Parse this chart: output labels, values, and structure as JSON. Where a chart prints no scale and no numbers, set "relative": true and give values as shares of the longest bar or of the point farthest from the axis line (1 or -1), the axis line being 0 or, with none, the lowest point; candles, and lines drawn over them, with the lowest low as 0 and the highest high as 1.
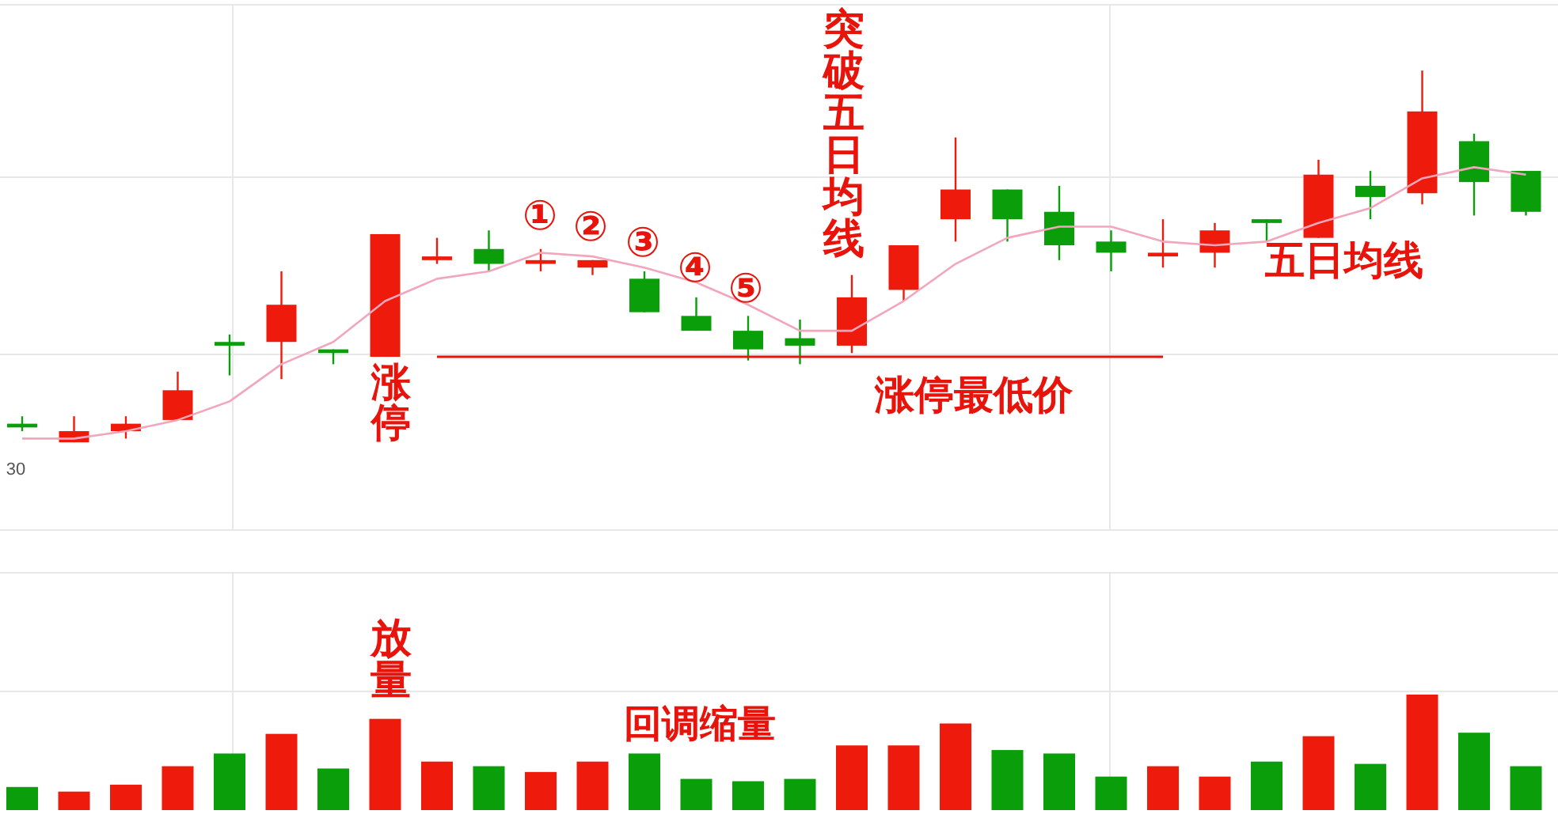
{
  "chart_data": [
    {
      "type": "candlestick",
      "relative": true,
      "categories": [
        null,
        null,
        null,
        null,
        null,
        null,
        null,
        null,
        null,
        null,
        null,
        null,
        null,
        null,
        null,
        null,
        null,
        null,
        null,
        null,
        null,
        null,
        null,
        null,
        null,
        null,
        null,
        null,
        null,
        null
      ],
      "ohlc": [
        [
          0.05,
          0.07,
          0.03,
          0.04
        ],
        [
          0,
          0.07,
          0,
          0.03
        ],
        [
          0.03,
          0.07,
          0.01,
          0.05
        ],
        [
          0.06,
          0.19,
          0.06,
          0.14
        ],
        [
          0.27,
          0.29,
          0.18,
          0.26
        ],
        [
          0.27,
          0.46,
          0.17,
          0.37
        ],
        [
          0.25,
          0.25,
          0.21,
          0.24
        ],
        [
          0.23,
          0.56,
          0.23,
          0.56
        ],
        [
          0.49,
          0.55,
          0.48,
          0.5
        ],
        [
          0.52,
          0.57,
          0.46,
          0.48
        ],
        [
          0.48,
          0.52,
          0.46,
          0.49
        ],
        [
          0.47,
          0.49,
          0.45,
          0.49
        ],
        [
          0.44,
          0.46,
          0.35,
          0.35
        ],
        [
          0.34,
          0.39,
          0.3,
          0.3
        ],
        [
          0.3,
          0.34,
          0.22,
          0.25
        ],
        [
          0.28,
          0.33,
          0.21,
          0.26
        ],
        [
          0.26,
          0.45,
          0.24,
          0.39
        ],
        [
          0.41,
          0.53,
          0.38,
          0.53
        ],
        [
          0.6,
          0.82,
          0.54,
          0.68
        ],
        [
          0.68,
          0.68,
          0.54,
          0.6
        ],
        [
          0.62,
          0.69,
          0.49,
          0.53
        ],
        [
          0.54,
          0.57,
          0.46,
          0.51
        ],
        [
          0.5,
          0.6,
          0.47,
          0.51
        ],
        [
          0.51,
          0.59,
          0.47,
          0.57
        ],
        [
          0.6,
          0.6,
          0.54,
          0.59
        ],
        [
          0.55,
          0.76,
          0.55,
          0.72
        ],
        [
          0.69,
          0.73,
          0.6,
          0.66
        ],
        [
          0.67,
          1,
          0.64,
          0.89
        ],
        [
          0.81,
          0.83,
          0.61,
          0.7
        ],
        [
          0.73,
          0.73,
          0.61,
          0.62
        ]
      ],
      "colors": [
        "#0a9e0a",
        "#ee1a0c",
        "#ee1a0c",
        "#ee1a0c",
        "#0a9e0a",
        "#ee1a0c",
        "#0a9e0a",
        "#ee1a0c",
        "#ee1a0c",
        "#0a9e0a",
        "#ee1a0c",
        "#ee1a0c",
        "#0a9e0a",
        "#0a9e0a",
        "#0a9e0a",
        "#0a9e0a",
        "#ee1a0c",
        "#ee1a0c",
        "#ee1a0c",
        "#0a9e0a",
        "#0a9e0a",
        "#0a9e0a",
        "#ee1a0c",
        "#ee1a0c",
        "#0a9e0a",
        "#ee1a0c",
        "#0a9e0a",
        "#ee1a0c",
        "#0a9e0a",
        "#0a9e0a"
      ],
      "series": [
        {
          "type": "line",
          "name": "五日均线",
          "color": "#f2a6bb",
          "values": [
            0.01,
            0.01,
            0.03,
            0.06,
            0.11,
            0.21,
            0.27,
            0.38,
            0.44,
            0.46,
            0.51,
            0.5,
            0.47,
            0.43,
            0.37,
            0.3,
            0.3,
            0.38,
            0.48,
            0.55,
            0.58,
            0.58,
            0.54,
            0.53,
            0.54,
            0.59,
            0.63,
            0.71,
            0.74,
            0.72
          ]
        },
        {
          "type": "line",
          "name": "涨停最低价",
          "color": "#e8140c",
          "values": [
            null,
            null,
            null,
            null,
            null,
            null,
            null,
            null,
            0.23,
            0.23,
            0.23,
            0.23,
            0.23,
            0.23,
            0.23,
            0.23,
            0.23,
            0.23,
            0.23,
            0.23,
            0.23,
            0.23,
            0.23,
            null,
            null,
            null,
            null,
            null,
            null,
            null
          ]
        }
      ],
      "annotations": [
        "涨停",
        "突破五日均线",
        "①",
        "②",
        "③",
        "④",
        "⑤",
        "30"
      ]
    },
    {
      "type": "bar",
      "relative": true,
      "categories": [
        null,
        null,
        null,
        null,
        null,
        null,
        null,
        null,
        null,
        null,
        null,
        null,
        null,
        null,
        null,
        null,
        null,
        null,
        null,
        null,
        null,
        null,
        null,
        null,
        null,
        null,
        null,
        null,
        null,
        null
      ],
      "values": [
        0.2,
        0.16,
        0.22,
        0.38,
        0.49,
        0.66,
        0.36,
        0.79,
        0.42,
        0.38,
        0.33,
        0.42,
        0.49,
        0.27,
        0.25,
        0.27,
        0.56,
        0.56,
        0.75,
        0.52,
        0.49,
        0.29,
        0.38,
        0.29,
        0.42,
        0.64,
        0.4,
        1,
        0.67,
        0.38
      ],
      "colors": [
        "#0a9e0a",
        "#ee1a0c",
        "#ee1a0c",
        "#ee1a0c",
        "#0a9e0a",
        "#ee1a0c",
        "#0a9e0a",
        "#ee1a0c",
        "#ee1a0c",
        "#0a9e0a",
        "#ee1a0c",
        "#ee1a0c",
        "#0a9e0a",
        "#0a9e0a",
        "#0a9e0a",
        "#0a9e0a",
        "#ee1a0c",
        "#ee1a0c",
        "#ee1a0c",
        "#0a9e0a",
        "#0a9e0a",
        "#0a9e0a",
        "#ee1a0c",
        "#ee1a0c",
        "#0a9e0a",
        "#ee1a0c",
        "#0a9e0a",
        "#ee1a0c",
        "#0a9e0a",
        "#0a9e0a"
      ],
      "annotations": [
        "放量",
        "回调缩量"
      ]
    }
  ]
}
